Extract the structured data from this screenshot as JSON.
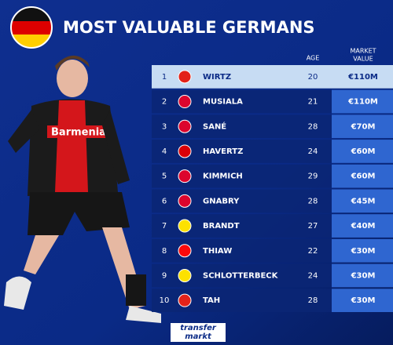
{
  "header": {
    "title": "MOST VALUABLE GERMANS"
  },
  "table": {
    "columns": {
      "age": "AGE",
      "value": [
        "MARKET",
        "VALUE"
      ]
    },
    "rows": [
      {
        "rank": 1,
        "name": "WIRTZ",
        "age": 20,
        "value": "€110M",
        "badge_color": "#e32219"
      },
      {
        "rank": 2,
        "name": "MUSIALA",
        "age": 21,
        "value": "€110M",
        "badge_color": "#dc052d"
      },
      {
        "rank": 3,
        "name": "SANÉ",
        "age": 28,
        "value": "€70M",
        "badge_color": "#dc052d"
      },
      {
        "rank": 4,
        "name": "HAVERTZ",
        "age": 24,
        "value": "€60M",
        "badge_color": "#db0007"
      },
      {
        "rank": 5,
        "name": "KIMMICH",
        "age": 29,
        "value": "€60M",
        "badge_color": "#dc052d"
      },
      {
        "rank": 6,
        "name": "GNABRY",
        "age": 28,
        "value": "€45M",
        "badge_color": "#dc052d"
      },
      {
        "rank": 7,
        "name": "BRANDT",
        "age": 27,
        "value": "€40M",
        "badge_color": "#fde100"
      },
      {
        "rank": 8,
        "name": "THIAW",
        "age": 22,
        "value": "€30M",
        "badge_color": "#fb090b"
      },
      {
        "rank": 9,
        "name": "SCHLOTTERBECK",
        "age": 24,
        "value": "€30M",
        "badge_color": "#fde100"
      },
      {
        "rank": 10,
        "name": "TAH",
        "age": 28,
        "value": "€30M",
        "badge_color": "#e32219"
      }
    ]
  },
  "footer": {
    "logo": [
      "transfer",
      "markt"
    ]
  }
}
